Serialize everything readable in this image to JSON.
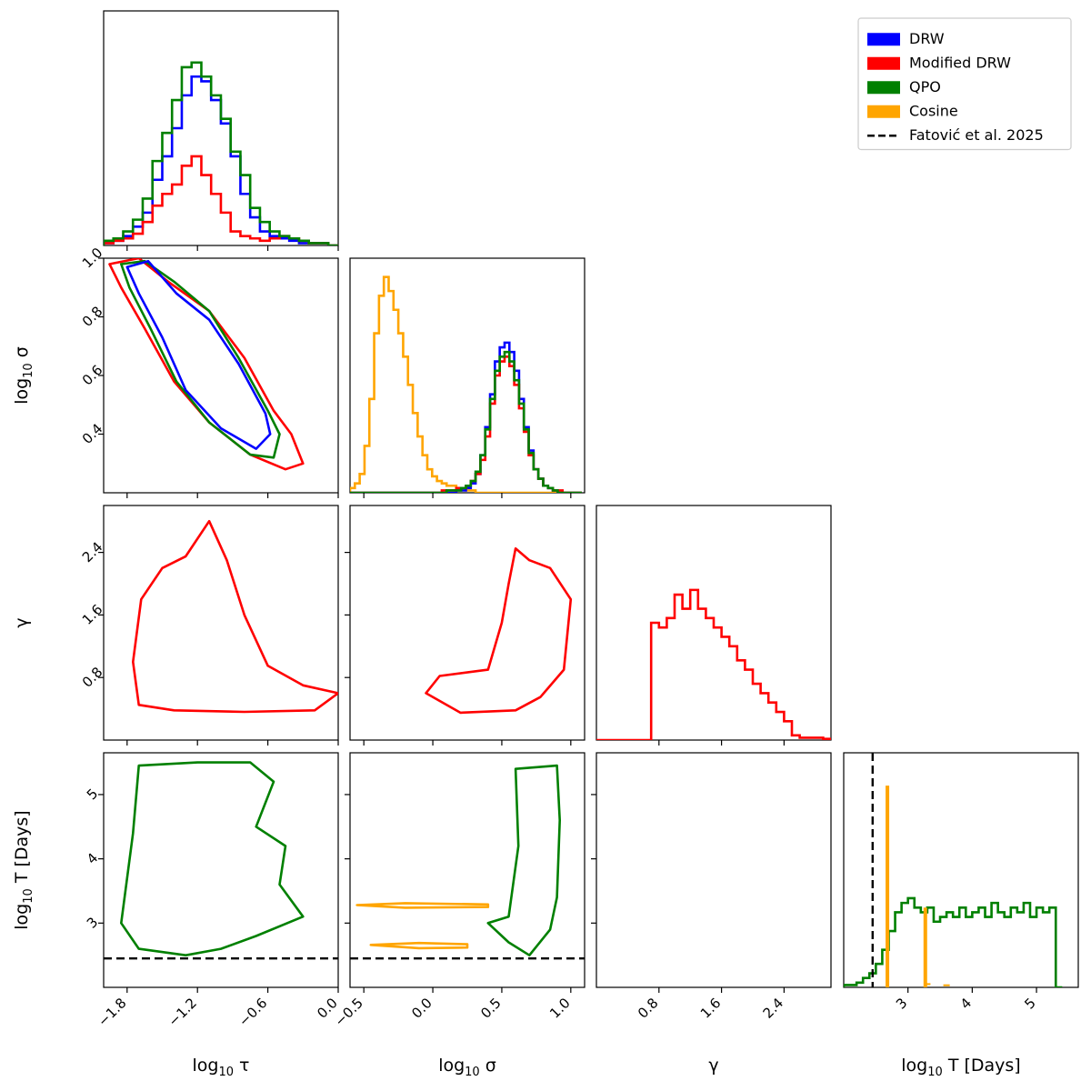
{
  "chart_data": {
    "type": "corner",
    "parameters": [
      {
        "key": "tau",
        "label_prefix": "log",
        "label_sub": "10",
        "label_sym": " τ",
        "range": [
          -2.0,
          0.0
        ],
        "ticks": [
          -1.8,
          -1.2,
          -0.6,
          0.0
        ],
        "tick_labels": [
          "−1.8",
          "−1.2",
          "−0.6",
          "0.0"
        ]
      },
      {
        "key": "sigma",
        "label_prefix": "log",
        "label_sub": "10",
        "label_sym": " σ",
        "range": [
          -0.6,
          1.1
        ],
        "ticks": [
          -0.5,
          0.0,
          0.5,
          1.0
        ],
        "tick_labels": [
          "−0.5",
          "0.0",
          "0.5",
          "1.0"
        ],
        "row_range": [
          0.2,
          1.0
        ],
        "row_ticks": [
          0.4,
          0.6,
          0.8,
          1.0
        ],
        "row_tick_labels": [
          "0.4",
          "0.6",
          "0.8",
          "1.0"
        ]
      },
      {
        "key": "gamma",
        "label_prefix": "",
        "label_sub": "",
        "label_sym": "γ",
        "range": [
          0.0,
          3.0
        ],
        "ticks": [
          0.8,
          1.6,
          2.4
        ],
        "tick_labels": [
          "0.8",
          "1.6",
          "2.4"
        ]
      },
      {
        "key": "logT",
        "label_prefix": "log",
        "label_sub": "10",
        "label_sym": " T [Days]",
        "range": [
          2.0,
          5.65
        ],
        "ticks": [
          3,
          4,
          5
        ],
        "tick_labels": [
          "3",
          "4",
          "5"
        ]
      }
    ],
    "legend": {
      "placement": "top-right",
      "entries": [
        {
          "name": "DRW",
          "color": "#0000ff",
          "style": "patch"
        },
        {
          "name": "Modified DRW",
          "color": "#ff0000",
          "style": "patch"
        },
        {
          "name": "QPO",
          "color": "#008000",
          "style": "patch"
        },
        {
          "name": "Cosine",
          "color": "#ffa500",
          "style": "patch"
        },
        {
          "name": "Fatović et al. 2025",
          "color": "#000000",
          "style": "dashed"
        }
      ]
    },
    "reference_line": {
      "parameter": "logT",
      "value": 2.45,
      "color": "#000000"
    },
    "histograms": {
      "tau": {
        "edges_start": -2.0,
        "bin_width": 0.0833,
        "series": [
          {
            "model": "DRW",
            "color": "#0000ff",
            "counts": [
              0.01,
              0.02,
              0.04,
              0.08,
              0.14,
              0.28,
              0.38,
              0.5,
              0.64,
              0.72,
              0.7,
              0.62,
              0.52,
              0.38,
              0.22,
              0.12,
              0.06,
              0.04,
              0.03,
              0.02,
              0.01,
              0.01,
              0.01,
              0.0
            ]
          },
          {
            "model": "Modified DRW",
            "color": "#ff0000",
            "counts": [
              0.01,
              0.02,
              0.03,
              0.05,
              0.1,
              0.17,
              0.22,
              0.26,
              0.34,
              0.38,
              0.3,
              0.22,
              0.14,
              0.06,
              0.04,
              0.03,
              0.02,
              0.03,
              0.04,
              0.03,
              0.02,
              0.01,
              0.01,
              0.0
            ]
          },
          {
            "model": "QPO",
            "color": "#008000",
            "counts": [
              0.02,
              0.03,
              0.06,
              0.11,
              0.2,
              0.36,
              0.48,
              0.62,
              0.76,
              0.78,
              0.72,
              0.64,
              0.54,
              0.4,
              0.3,
              0.16,
              0.1,
              0.06,
              0.04,
              0.03,
              0.02,
              0.01,
              0.01,
              0.0
            ]
          }
        ]
      },
      "sigma": {
        "edges_start": -0.6,
        "bin_width": 0.035,
        "series": [
          {
            "model": "Cosine",
            "color": "#ffa500",
            "counts": [
              0.02,
              0.04,
              0.08,
              0.2,
              0.4,
              0.68,
              0.84,
              0.92,
              0.86,
              0.78,
              0.68,
              0.58,
              0.46,
              0.34,
              0.24,
              0.16,
              0.1,
              0.07,
              0.05,
              0.04,
              0.03,
              0.03,
              0.02,
              0.02,
              0.01,
              0.01,
              0.0,
              0.0,
              0.0,
              0.0,
              0.0,
              0.0,
              0.0,
              0.0,
              0.0,
              0.0,
              0.0,
              0.0,
              0.0,
              0.0,
              0.0,
              0.0,
              0.0,
              0.0,
              0.0,
              0.0,
              0.0,
              0.0
            ]
          },
          {
            "model": "DRW",
            "color": "#0000ff",
            "counts": [
              0,
              0,
              0,
              0,
              0,
              0,
              0,
              0,
              0,
              0,
              0,
              0,
              0,
              0,
              0,
              0,
              0,
              0,
              0,
              0,
              0,
              0,
              0.01,
              0.01,
              0.02,
              0.04,
              0.08,
              0.16,
              0.28,
              0.42,
              0.56,
              0.62,
              0.64,
              0.6,
              0.52,
              0.4,
              0.28,
              0.18,
              0.1,
              0.06,
              0.03,
              0.02,
              0.01,
              0,
              0,
              0,
              0,
              0
            ]
          },
          {
            "model": "Modified DRW",
            "color": "#ff0000",
            "counts": [
              0,
              0,
              0,
              0,
              0,
              0,
              0,
              0,
              0,
              0,
              0,
              0,
              0,
              0,
              0,
              0,
              0,
              0,
              0,
              0.01,
              0.01,
              0.01,
              0.02,
              0.02,
              0.03,
              0.05,
              0.08,
              0.14,
              0.24,
              0.38,
              0.5,
              0.56,
              0.58,
              0.54,
              0.46,
              0.36,
              0.26,
              0.16,
              0.1,
              0.06,
              0.03,
              0.02,
              0.01,
              0.01,
              0,
              0,
              0,
              0
            ]
          },
          {
            "model": "QPO",
            "color": "#008000",
            "counts": [
              0,
              0,
              0,
              0,
              0,
              0,
              0,
              0,
              0,
              0,
              0,
              0,
              0,
              0,
              0,
              0,
              0,
              0,
              0,
              0,
              0.01,
              0.01,
              0.01,
              0.02,
              0.03,
              0.05,
              0.09,
              0.16,
              0.27,
              0.4,
              0.52,
              0.58,
              0.6,
              0.56,
              0.48,
              0.38,
              0.27,
              0.17,
              0.1,
              0.06,
              0.03,
              0.02,
              0.01,
              0,
              0,
              0,
              0,
              0
            ]
          }
        ]
      },
      "gamma": {
        "edges_start": 0.0,
        "bin_width": 0.1,
        "series": [
          {
            "model": "Modified DRW",
            "color": "#ff0000",
            "counts": [
              0,
              0,
              0,
              0,
              0,
              0,
              0,
              0.5,
              0.48,
              0.52,
              0.62,
              0.56,
              0.64,
              0.56,
              0.52,
              0.48,
              0.44,
              0.4,
              0.34,
              0.3,
              0.24,
              0.2,
              0.16,
              0.12,
              0.08,
              0.02,
              0.01,
              0.01,
              0.01,
              0.005
            ]
          }
        ]
      },
      "logT": {
        "edges_start": 2.0,
        "bin_width": 0.1,
        "series": [
          {
            "model": "QPO",
            "color": "#008000",
            "counts": [
              0.01,
              0.01,
              0.02,
              0.04,
              0.06,
              0.1,
              0.16,
              0.24,
              0.32,
              0.36,
              0.38,
              0.34,
              0.32,
              0.34,
              0.28,
              0.3,
              0.32,
              0.3,
              0.34,
              0.3,
              0.32,
              0.34,
              0.3,
              0.36,
              0.32,
              0.3,
              0.34,
              0.32,
              0.36,
              0.3,
              0.34,
              0.32,
              0.34,
              0.0
            ]
          },
          {
            "model": "Cosine",
            "color": "#ffa500",
            "spikes": [
              {
                "x": 2.68,
                "height": 0.86
              },
              {
                "x": 3.27,
                "height": 0.34
              }
            ],
            "tail": [
              {
                "x": 3.3,
                "height": 0.01
              },
              {
                "x": 3.6,
                "height": 0.005
              }
            ]
          }
        ]
      }
    },
    "contours": {
      "tau_sigma": [
        {
          "model": "Modified DRW",
          "color": "#ff0000",
          "path": [
            [
              -1.95,
              0.98
            ],
            [
              -1.7,
              1.0
            ],
            [
              -1.45,
              0.92
            ],
            [
              -1.1,
              0.82
            ],
            [
              -0.8,
              0.66
            ],
            [
              -0.55,
              0.48
            ],
            [
              -0.4,
              0.4
            ],
            [
              -0.3,
              0.3
            ],
            [
              -0.45,
              0.28
            ],
            [
              -0.75,
              0.33
            ],
            [
              -1.1,
              0.44
            ],
            [
              -1.4,
              0.58
            ],
            [
              -1.65,
              0.76
            ],
            [
              -1.85,
              0.9
            ],
            [
              -1.95,
              0.98
            ]
          ]
        },
        {
          "model": "QPO",
          "color": "#008000",
          "path": [
            [
              -1.85,
              0.98
            ],
            [
              -1.65,
              0.99
            ],
            [
              -1.4,
              0.92
            ],
            [
              -1.1,
              0.82
            ],
            [
              -0.85,
              0.66
            ],
            [
              -0.6,
              0.48
            ],
            [
              -0.5,
              0.4
            ],
            [
              -0.55,
              0.32
            ],
            [
              -0.75,
              0.33
            ],
            [
              -1.1,
              0.44
            ],
            [
              -1.38,
              0.58
            ],
            [
              -1.6,
              0.76
            ],
            [
              -1.78,
              0.9
            ],
            [
              -1.85,
              0.98
            ]
          ]
        },
        {
          "model": "DRW",
          "color": "#0000ff",
          "path": [
            [
              -1.8,
              0.97
            ],
            [
              -1.62,
              0.99
            ],
            [
              -1.38,
              0.88
            ],
            [
              -1.1,
              0.79
            ],
            [
              -0.85,
              0.64
            ],
            [
              -0.62,
              0.47
            ],
            [
              -0.58,
              0.4
            ],
            [
              -0.7,
              0.35
            ],
            [
              -1.0,
              0.42
            ],
            [
              -1.3,
              0.55
            ],
            [
              -1.5,
              0.73
            ],
            [
              -1.7,
              0.88
            ],
            [
              -1.8,
              0.97
            ]
          ]
        }
      ],
      "tau_gamma": [
        {
          "model": "Modified DRW",
          "color": "#ff0000",
          "path": [
            [
              -1.75,
              1.0
            ],
            [
              -1.68,
              1.8
            ],
            [
              -1.5,
              2.2
            ],
            [
              -1.3,
              2.35
            ],
            [
              -1.1,
              2.8
            ],
            [
              -0.95,
              2.3
            ],
            [
              -0.8,
              1.6
            ],
            [
              -0.6,
              0.95
            ],
            [
              -0.3,
              0.7
            ],
            [
              0.0,
              0.6
            ],
            [
              -0.2,
              0.38
            ],
            [
              -0.8,
              0.36
            ],
            [
              -1.4,
              0.38
            ],
            [
              -1.7,
              0.45
            ],
            [
              -1.75,
              1.0
            ]
          ]
        }
      ],
      "sigma_gamma": [
        {
          "model": "Modified DRW",
          "color": "#ff0000",
          "path": [
            [
              -0.05,
              0.6
            ],
            [
              0.05,
              0.82
            ],
            [
              0.4,
              0.9
            ],
            [
              0.5,
              1.5
            ],
            [
              0.55,
              2.0
            ],
            [
              0.6,
              2.45
            ],
            [
              0.7,
              2.3
            ],
            [
              0.85,
              2.2
            ],
            [
              1.0,
              1.8
            ],
            [
              0.95,
              0.9
            ],
            [
              0.78,
              0.55
            ],
            [
              0.6,
              0.38
            ],
            [
              0.2,
              0.35
            ],
            [
              -0.05,
              0.6
            ]
          ]
        }
      ],
      "tau_logT": [
        {
          "model": "QPO",
          "color": "#008000",
          "path": [
            [
              -1.85,
              3.0
            ],
            [
              -1.75,
              4.4
            ],
            [
              -1.7,
              5.45
            ],
            [
              -1.2,
              5.5
            ],
            [
              -0.75,
              5.5
            ],
            [
              -0.55,
              5.2
            ],
            [
              -0.7,
              4.5
            ],
            [
              -0.45,
              4.2
            ],
            [
              -0.5,
              3.6
            ],
            [
              -0.3,
              3.1
            ],
            [
              -0.7,
              2.8
            ],
            [
              -1.0,
              2.6
            ],
            [
              -1.3,
              2.5
            ],
            [
              -1.7,
              2.6
            ],
            [
              -1.85,
              3.0
            ]
          ]
        }
      ],
      "sigma_logT": [
        {
          "model": "QPO",
          "color": "#008000",
          "path": [
            [
              0.55,
              3.1
            ],
            [
              0.62,
              4.2
            ],
            [
              0.6,
              5.4
            ],
            [
              0.9,
              5.45
            ],
            [
              0.92,
              4.6
            ],
            [
              0.9,
              3.4
            ],
            [
              0.85,
              2.9
            ],
            [
              0.7,
              2.5
            ],
            [
              0.55,
              2.7
            ],
            [
              0.4,
              3.0
            ],
            [
              0.55,
              3.1
            ]
          ]
        },
        {
          "model": "Cosine",
          "color": "#ffa500",
          "path": [
            [
              -0.55,
              3.28
            ],
            [
              -0.2,
              3.31
            ],
            [
              0.4,
              3.29
            ],
            [
              0.4,
              3.25
            ],
            [
              -0.2,
              3.24
            ],
            [
              -0.55,
              3.28
            ]
          ]
        },
        {
          "model": "Cosine",
          "color": "#ffa500",
          "path": [
            [
              -0.45,
              2.66
            ],
            [
              -0.1,
              2.69
            ],
            [
              0.25,
              2.67
            ],
            [
              0.25,
              2.62
            ],
            [
              -0.1,
              2.61
            ],
            [
              -0.45,
              2.66
            ]
          ]
        }
      ]
    }
  }
}
